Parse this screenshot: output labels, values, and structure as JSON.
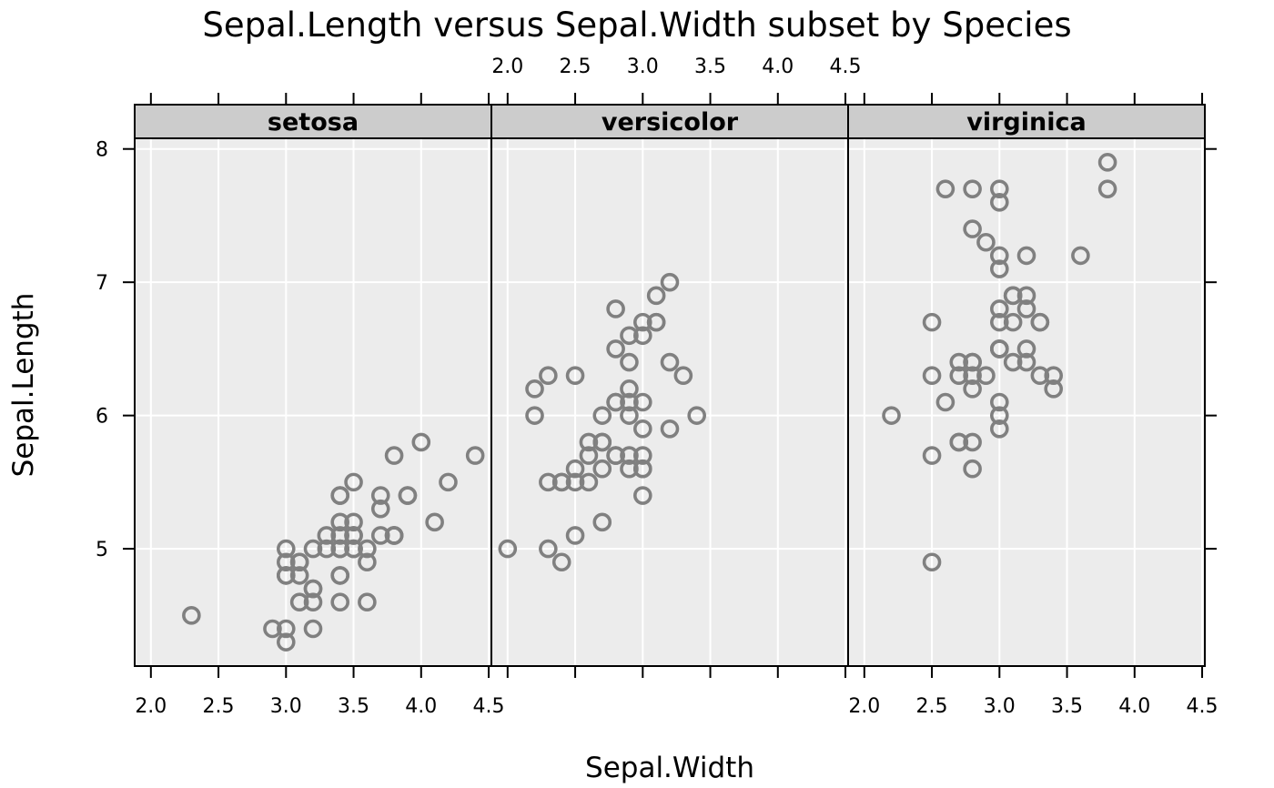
{
  "chart_data": {
    "type": "scatter",
    "title": "Sepal.Length versus Sepal.Width subset by Species",
    "xlabel": "Sepal.Width",
    "ylabel": "Sepal.Length",
    "xlim": [
      1.88,
      4.52
    ],
    "ylim": [
      4.12,
      8.08
    ],
    "x_ticks": [
      2.0,
      2.5,
      3.0,
      3.5,
      4.0,
      4.5
    ],
    "x_tick_labels": [
      "2.0",
      "2.5",
      "3.0",
      "3.5",
      "4.0",
      "4.5"
    ],
    "y_ticks": [
      5,
      6,
      7,
      8
    ],
    "y_tick_labels": [
      "5",
      "6",
      "7",
      "8"
    ],
    "grid": true,
    "colors": {
      "panel_bg": "#ececec",
      "strip_bg": "#cccccc",
      "grid": "#ffffff",
      "point": "#808080",
      "axis": "#000000"
    },
    "panels": [
      {
        "label": "setosa",
        "points": [
          [
            3.5,
            5.1
          ],
          [
            3.0,
            4.9
          ],
          [
            3.2,
            4.7
          ],
          [
            3.1,
            4.6
          ],
          [
            3.6,
            5.0
          ],
          [
            3.9,
            5.4
          ],
          [
            3.4,
            4.6
          ],
          [
            3.4,
            5.0
          ],
          [
            2.9,
            4.4
          ],
          [
            3.1,
            4.9
          ],
          [
            3.7,
            5.4
          ],
          [
            3.4,
            4.8
          ],
          [
            3.0,
            4.8
          ],
          [
            3.0,
            4.3
          ],
          [
            4.0,
            5.8
          ],
          [
            4.4,
            5.7
          ],
          [
            3.9,
            5.4
          ],
          [
            3.5,
            5.1
          ],
          [
            3.8,
            5.7
          ],
          [
            3.8,
            5.1
          ],
          [
            3.4,
            5.4
          ],
          [
            3.7,
            5.1
          ],
          [
            3.6,
            4.6
          ],
          [
            3.3,
            5.1
          ],
          [
            3.4,
            4.8
          ],
          [
            3.0,
            5.0
          ],
          [
            3.4,
            5.0
          ],
          [
            3.5,
            5.2
          ],
          [
            3.4,
            5.2
          ],
          [
            3.2,
            4.7
          ],
          [
            3.1,
            4.8
          ],
          [
            3.4,
            5.4
          ],
          [
            4.1,
            5.2
          ],
          [
            4.2,
            5.5
          ],
          [
            3.1,
            4.9
          ],
          [
            3.2,
            5.0
          ],
          [
            3.5,
            5.5
          ],
          [
            3.6,
            4.9
          ],
          [
            3.0,
            4.4
          ],
          [
            3.4,
            5.1
          ],
          [
            3.5,
            5.0
          ],
          [
            2.3,
            4.5
          ],
          [
            3.2,
            4.4
          ],
          [
            3.5,
            5.0
          ],
          [
            3.8,
            5.1
          ],
          [
            3.0,
            4.8
          ],
          [
            3.8,
            5.1
          ],
          [
            3.2,
            4.6
          ],
          [
            3.7,
            5.3
          ],
          [
            3.3,
            5.0
          ]
        ]
      },
      {
        "label": "versicolor",
        "points": [
          [
            3.2,
            7.0
          ],
          [
            3.2,
            6.4
          ],
          [
            3.1,
            6.9
          ],
          [
            2.3,
            5.5
          ],
          [
            2.8,
            6.5
          ],
          [
            2.8,
            5.7
          ],
          [
            3.3,
            6.3
          ],
          [
            2.4,
            4.9
          ],
          [
            2.9,
            6.6
          ],
          [
            2.7,
            5.2
          ],
          [
            2.0,
            5.0
          ],
          [
            3.0,
            5.9
          ],
          [
            2.2,
            6.0
          ],
          [
            2.9,
            6.1
          ],
          [
            2.9,
            5.6
          ],
          [
            3.1,
            6.7
          ],
          [
            3.0,
            5.6
          ],
          [
            2.7,
            5.8
          ],
          [
            2.2,
            6.2
          ],
          [
            2.5,
            5.6
          ],
          [
            3.2,
            5.9
          ],
          [
            2.8,
            6.1
          ],
          [
            2.5,
            6.3
          ],
          [
            2.8,
            6.1
          ],
          [
            2.9,
            6.4
          ],
          [
            3.0,
            6.6
          ],
          [
            2.8,
            6.8
          ],
          [
            3.0,
            6.7
          ],
          [
            2.9,
            6.0
          ],
          [
            2.6,
            5.7
          ],
          [
            2.4,
            5.5
          ],
          [
            2.4,
            5.5
          ],
          [
            2.7,
            5.8
          ],
          [
            2.7,
            6.0
          ],
          [
            3.0,
            5.4
          ],
          [
            3.4,
            6.0
          ],
          [
            3.1,
            6.7
          ],
          [
            2.3,
            6.3
          ],
          [
            3.0,
            5.6
          ],
          [
            2.5,
            5.5
          ],
          [
            2.6,
            5.5
          ],
          [
            3.0,
            6.1
          ],
          [
            2.6,
            5.8
          ],
          [
            2.3,
            5.0
          ],
          [
            2.7,
            5.6
          ],
          [
            3.0,
            5.7
          ],
          [
            2.9,
            5.7
          ],
          [
            2.9,
            6.2
          ],
          [
            2.5,
            5.1
          ],
          [
            2.8,
            5.7
          ]
        ]
      },
      {
        "label": "virginica",
        "points": [
          [
            3.3,
            6.3
          ],
          [
            2.7,
            5.8
          ],
          [
            3.0,
            7.1
          ],
          [
            2.9,
            6.3
          ],
          [
            3.0,
            6.5
          ],
          [
            3.0,
            7.6
          ],
          [
            2.5,
            4.9
          ],
          [
            2.9,
            7.3
          ],
          [
            2.5,
            6.7
          ],
          [
            3.6,
            7.2
          ],
          [
            3.2,
            6.5
          ],
          [
            2.7,
            6.4
          ],
          [
            3.0,
            6.8
          ],
          [
            2.5,
            5.7
          ],
          [
            2.8,
            5.8
          ],
          [
            3.2,
            6.4
          ],
          [
            3.0,
            6.5
          ],
          [
            3.8,
            7.7
          ],
          [
            2.6,
            7.7
          ],
          [
            2.2,
            6.0
          ],
          [
            3.2,
            6.9
          ],
          [
            2.8,
            5.6
          ],
          [
            2.8,
            7.7
          ],
          [
            2.7,
            6.3
          ],
          [
            3.3,
            6.7
          ],
          [
            3.2,
            7.2
          ],
          [
            2.8,
            6.2
          ],
          [
            3.0,
            6.1
          ],
          [
            2.8,
            6.4
          ],
          [
            3.0,
            7.2
          ],
          [
            2.8,
            7.4
          ],
          [
            3.8,
            7.9
          ],
          [
            2.8,
            6.4
          ],
          [
            2.8,
            6.3
          ],
          [
            2.6,
            6.1
          ],
          [
            3.0,
            7.7
          ],
          [
            3.4,
            6.3
          ],
          [
            3.1,
            6.4
          ],
          [
            3.0,
            6.0
          ],
          [
            3.1,
            6.9
          ],
          [
            3.1,
            6.7
          ],
          [
            3.1,
            6.9
          ],
          [
            2.7,
            5.8
          ],
          [
            3.2,
            6.8
          ],
          [
            3.3,
            6.7
          ],
          [
            3.0,
            6.7
          ],
          [
            2.5,
            6.3
          ],
          [
            3.0,
            6.5
          ],
          [
            3.4,
            6.2
          ],
          [
            3.0,
            5.9
          ]
        ]
      }
    ]
  }
}
